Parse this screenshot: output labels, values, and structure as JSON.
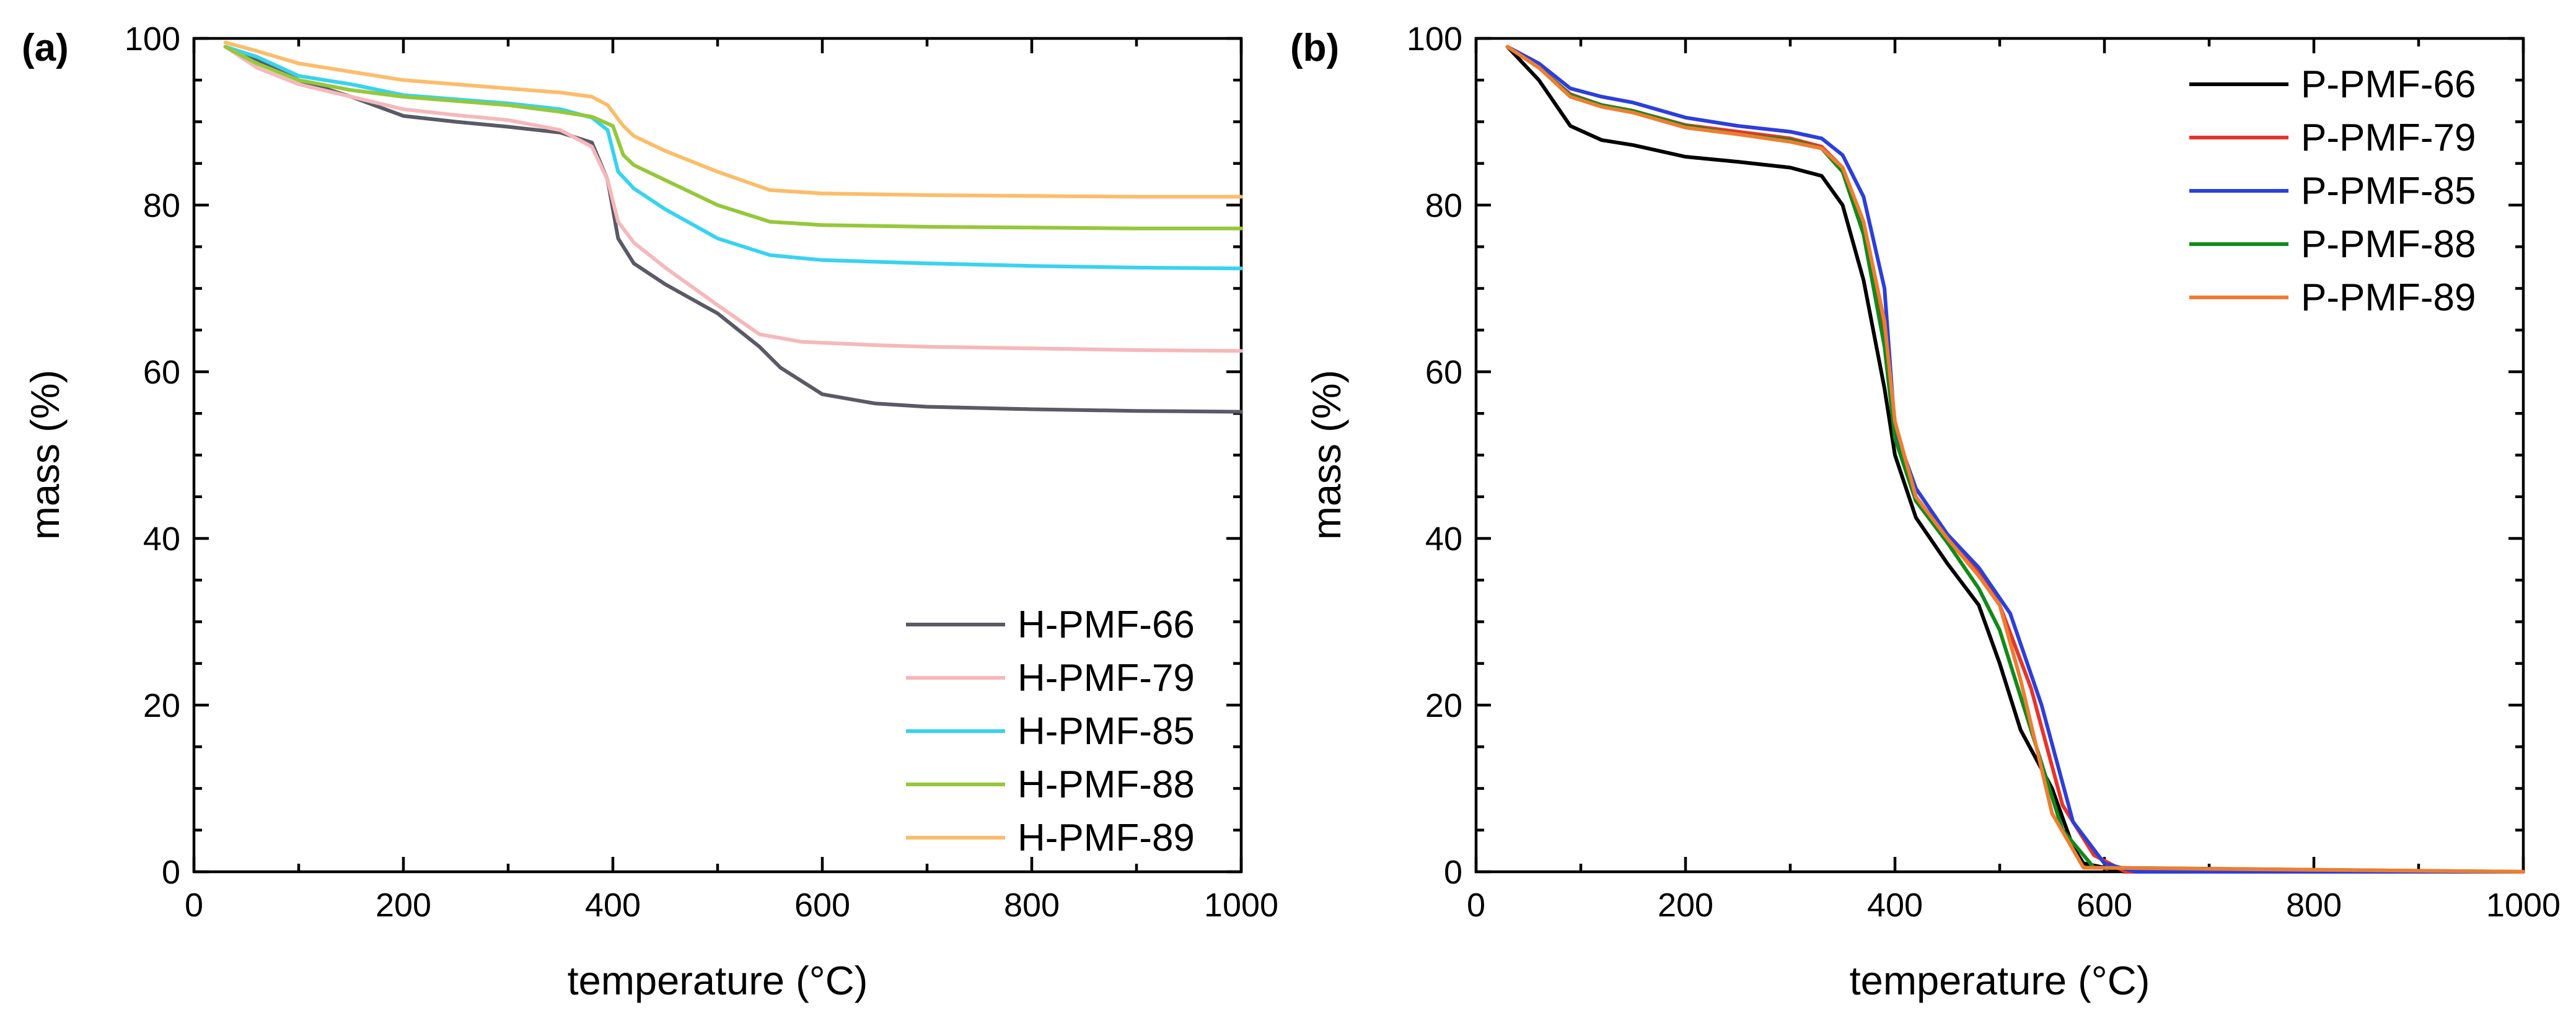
{
  "chart_data": [
    {
      "type": "line",
      "panel_label": "(a)",
      "xlabel": "temperature (°C)",
      "ylabel": "mass (%)",
      "xlim": [
        0,
        1000
      ],
      "ylim": [
        0,
        100
      ],
      "xticks": [
        "0",
        "200",
        "400",
        "600",
        "800",
        "1000"
      ],
      "yticks": [
        "0",
        "20",
        "40",
        "60",
        "80",
        "100"
      ],
      "legend_position": "bottom-right",
      "series": [
        {
          "name": "H-PMF-66",
          "color": "#5a5a66",
          "x": [
            30,
            60,
            100,
            150,
            200,
            250,
            300,
            350,
            380,
            395,
            405,
            420,
            450,
            500,
            540,
            560,
            600,
            650,
            700,
            800,
            900,
            1000
          ],
          "y": [
            99,
            97.5,
            95,
            93,
            90.7,
            90,
            89.4,
            88.7,
            87.5,
            83,
            76,
            73,
            70.5,
            67,
            63,
            60.5,
            57.3,
            56.2,
            55.8,
            55.5,
            55.3,
            55.2
          ]
        },
        {
          "name": "H-PMF-79",
          "color": "#f5b8bb",
          "x": [
            30,
            60,
            100,
            150,
            200,
            250,
            300,
            350,
            380,
            395,
            405,
            420,
            450,
            500,
            540,
            580,
            650,
            700,
            800,
            900,
            1000
          ],
          "y": [
            99,
            96.5,
            94.5,
            93,
            91.5,
            90.8,
            90.2,
            89,
            87,
            83,
            78,
            75.5,
            72.5,
            68,
            64.5,
            63.6,
            63.2,
            63,
            62.8,
            62.6,
            62.5
          ]
        },
        {
          "name": "H-PMF-85",
          "color": "#38d3ef",
          "x": [
            30,
            60,
            100,
            150,
            200,
            250,
            300,
            350,
            380,
            395,
            405,
            420,
            450,
            500,
            550,
            600,
            700,
            800,
            900,
            1000
          ],
          "y": [
            99,
            97.8,
            95.5,
            94.5,
            93.2,
            92.7,
            92.2,
            91.5,
            90.5,
            89,
            84,
            82,
            79.5,
            76,
            74,
            73.4,
            73,
            72.7,
            72.5,
            72.4
          ]
        },
        {
          "name": "H-PMF-88",
          "color": "#95c83a",
          "x": [
            30,
            60,
            100,
            150,
            200,
            250,
            300,
            350,
            380,
            400,
            410,
            420,
            450,
            500,
            550,
            600,
            700,
            800,
            900,
            1000
          ],
          "y": [
            99,
            97,
            95,
            93.8,
            93,
            92.5,
            92,
            91.2,
            90.6,
            89.5,
            86,
            84.8,
            83,
            80,
            78,
            77.6,
            77.4,
            77.3,
            77.2,
            77.2
          ]
        },
        {
          "name": "H-PMF-89",
          "color": "#fbbd6b",
          "x": [
            30,
            60,
            100,
            150,
            200,
            250,
            300,
            350,
            380,
            395,
            410,
            420,
            450,
            500,
            550,
            600,
            700,
            800,
            900,
            1000
          ],
          "y": [
            99.5,
            98.5,
            97,
            96,
            95,
            94.5,
            94,
            93.5,
            93,
            92,
            89.5,
            88.3,
            86.5,
            84,
            81.8,
            81.4,
            81.2,
            81.1,
            81,
            81
          ]
        }
      ]
    },
    {
      "type": "line",
      "panel_label": "(b)",
      "xlabel": "temperature (°C)",
      "ylabel": "mass (%)",
      "xlim": [
        0,
        1000
      ],
      "ylim": [
        0,
        100
      ],
      "xticks": [
        "0",
        "200",
        "400",
        "600",
        "800",
        "1000"
      ],
      "yticks": [
        "0",
        "20",
        "40",
        "60",
        "80",
        "100"
      ],
      "legend_position": "top-right",
      "series": [
        {
          "name": "P-PMF-66",
          "color": "#000000",
          "x": [
            30,
            60,
            90,
            120,
            150,
            200,
            250,
            300,
            330,
            350,
            370,
            390,
            400,
            420,
            450,
            480,
            500,
            520,
            550,
            570,
            580,
            620,
            1000
          ],
          "y": [
            99,
            95,
            89.5,
            87.8,
            87.2,
            85.8,
            85.2,
            84.5,
            83.5,
            80,
            71,
            58,
            50,
            42.5,
            37,
            32,
            25,
            17,
            10,
            3,
            1,
            0,
            0
          ]
        },
        {
          "name": "P-PMF-79",
          "color": "#e8342b",
          "x": [
            30,
            60,
            90,
            120,
            150,
            200,
            250,
            300,
            330,
            350,
            370,
            390,
            400,
            420,
            450,
            480,
            500,
            530,
            560,
            590,
            620,
            1000
          ],
          "y": [
            99,
            96.5,
            93.3,
            92,
            91.3,
            89.6,
            88.8,
            88,
            87,
            84.5,
            77,
            64,
            52,
            45,
            40,
            36,
            32,
            22,
            8,
            2,
            0,
            0
          ]
        },
        {
          "name": "P-PMF-85",
          "color": "#2c3fdb",
          "x": [
            30,
            60,
            90,
            120,
            150,
            200,
            250,
            300,
            330,
            350,
            370,
            390,
            400,
            420,
            450,
            480,
            510,
            540,
            570,
            600,
            630,
            1000
          ],
          "y": [
            99,
            97,
            94,
            93,
            92.3,
            90.5,
            89.5,
            88.8,
            88,
            86,
            81,
            70,
            53,
            46,
            40.5,
            36.5,
            31,
            20,
            6,
            1,
            0,
            0
          ]
        },
        {
          "name": "P-PMF-88",
          "color": "#118a1a",
          "x": [
            30,
            60,
            90,
            120,
            150,
            200,
            250,
            300,
            330,
            350,
            370,
            390,
            400,
            420,
            450,
            480,
            500,
            530,
            560,
            590,
            1000
          ],
          "y": [
            99,
            96.5,
            93.2,
            92,
            91.3,
            89.5,
            88.5,
            87.8,
            86.8,
            84,
            76.5,
            63,
            52,
            44.5,
            39.5,
            34,
            29,
            17,
            5,
            0.5,
            0
          ]
        },
        {
          "name": "P-PMF-89",
          "color": "#ee7d32",
          "x": [
            30,
            60,
            90,
            120,
            150,
            200,
            250,
            300,
            330,
            350,
            370,
            390,
            400,
            420,
            450,
            480,
            500,
            520,
            550,
            580,
            1000
          ],
          "y": [
            99,
            96.5,
            93,
            91.8,
            91.1,
            89.3,
            88.5,
            87.6,
            86.8,
            84.5,
            78,
            66,
            54,
            45,
            40,
            35.5,
            32,
            23,
            7,
            0.5,
            0
          ]
        }
      ]
    }
  ]
}
